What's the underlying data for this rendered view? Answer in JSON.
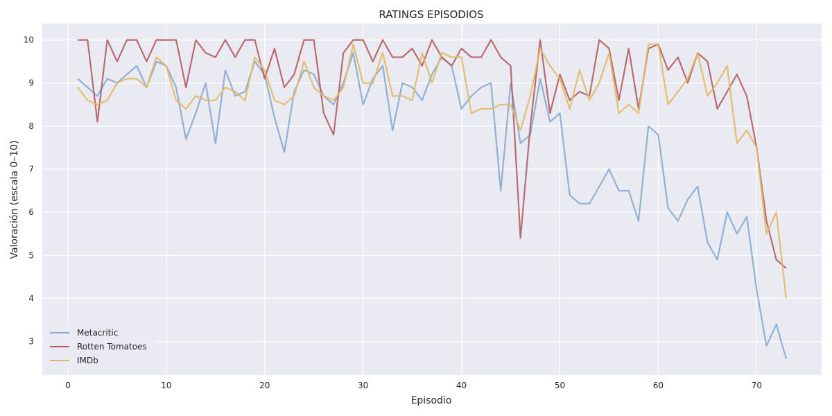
{
  "chart_data": {
    "type": "line",
    "title": "RATINGS EPISODIOS",
    "xlabel": "Episodio",
    "ylabel": "Valoración (escala 0–10)",
    "xlim": [
      -2.6,
      76.6
    ],
    "ylim": [
      2.22,
      10.38
    ],
    "xticks": [
      0,
      10,
      20,
      30,
      40,
      50,
      60,
      70
    ],
    "yticks": [
      3,
      4,
      5,
      6,
      7,
      8,
      9,
      10
    ],
    "grid": true,
    "legend_position": "lower-left",
    "x": [
      1,
      2,
      3,
      4,
      5,
      6,
      7,
      8,
      9,
      10,
      11,
      12,
      13,
      14,
      15,
      16,
      17,
      18,
      19,
      20,
      21,
      22,
      23,
      24,
      25,
      26,
      27,
      28,
      29,
      30,
      31,
      32,
      33,
      34,
      35,
      36,
      37,
      38,
      39,
      40,
      41,
      42,
      43,
      44,
      45,
      46,
      47,
      48,
      49,
      50,
      51,
      52,
      53,
      54,
      55,
      56,
      57,
      58,
      59,
      60,
      61,
      62,
      63,
      64,
      65,
      66,
      67,
      68,
      69,
      70,
      71,
      72,
      73
    ],
    "series": [
      {
        "name": "Metacritic",
        "color": "#87aacf",
        "values": [
          9.1,
          8.9,
          8.7,
          9.1,
          9.0,
          9.2,
          9.4,
          8.9,
          9.5,
          9.4,
          8.9,
          7.7,
          8.3,
          9.0,
          7.6,
          9.3,
          8.7,
          8.8,
          9.5,
          9.2,
          8.2,
          7.4,
          8.8,
          9.3,
          9.2,
          8.7,
          8.5,
          9.0,
          9.7,
          8.5,
          9.1,
          9.4,
          7.9,
          9.0,
          8.9,
          8.6,
          9.2,
          9.6,
          9.4,
          8.4,
          8.7,
          8.9,
          9.0,
          6.5,
          9.0,
          7.6,
          7.8,
          9.1,
          8.1,
          8.3,
          6.4,
          6.2,
          6.2,
          6.6,
          7.0,
          6.5,
          6.5,
          5.8,
          8.0,
          7.8,
          6.1,
          5.8,
          6.3,
          6.6,
          5.3,
          4.9,
          6.0,
          5.5,
          5.9,
          4.2,
          2.9,
          3.4,
          2.6
        ]
      },
      {
        "name": "Rotten Tomatoes",
        "color": "#b55d60",
        "values": [
          10.0,
          10.0,
          8.1,
          10.0,
          9.5,
          10.0,
          10.0,
          9.5,
          10.0,
          10.0,
          10.0,
          8.9,
          10.0,
          9.7,
          9.6,
          10.0,
          9.6,
          10.0,
          10.0,
          9.1,
          9.8,
          8.9,
          9.2,
          10.0,
          10.0,
          8.3,
          7.8,
          9.7,
          10.0,
          10.0,
          9.5,
          10.0,
          9.6,
          9.6,
          9.8,
          9.4,
          10.0,
          9.6,
          9.4,
          9.8,
          9.6,
          9.6,
          10.0,
          9.6,
          9.4,
          5.4,
          8.0,
          10.0,
          8.3,
          9.2,
          8.6,
          8.8,
          8.7,
          10.0,
          9.8,
          8.6,
          9.8,
          8.4,
          9.8,
          9.9,
          9.3,
          9.6,
          9.0,
          9.7,
          9.5,
          8.4,
          8.8,
          9.2,
          8.7,
          7.5,
          5.8,
          4.9,
          4.7
        ]
      },
      {
        "name": "IMDb",
        "color": "#e2b962",
        "values": [
          8.9,
          8.6,
          8.5,
          8.6,
          9.0,
          9.1,
          9.1,
          8.9,
          9.6,
          9.4,
          8.6,
          8.4,
          8.7,
          8.6,
          8.6,
          8.9,
          8.8,
          8.6,
          9.6,
          9.3,
          8.6,
          8.5,
          8.7,
          9.5,
          8.9,
          8.7,
          8.6,
          8.9,
          9.9,
          9.0,
          9.0,
          9.7,
          8.7,
          8.7,
          8.6,
          9.7,
          9.0,
          9.7,
          9.6,
          9.6,
          8.3,
          8.4,
          8.4,
          8.5,
          8.5,
          7.9,
          8.7,
          9.8,
          9.4,
          9.1,
          8.4,
          9.3,
          8.6,
          9.0,
          9.7,
          8.3,
          8.5,
          8.3,
          9.9,
          9.9,
          8.5,
          8.8,
          9.1,
          9.7,
          8.7,
          9.0,
          9.4,
          7.6,
          7.9,
          7.5,
          5.5,
          6.0,
          4.0
        ]
      }
    ]
  }
}
